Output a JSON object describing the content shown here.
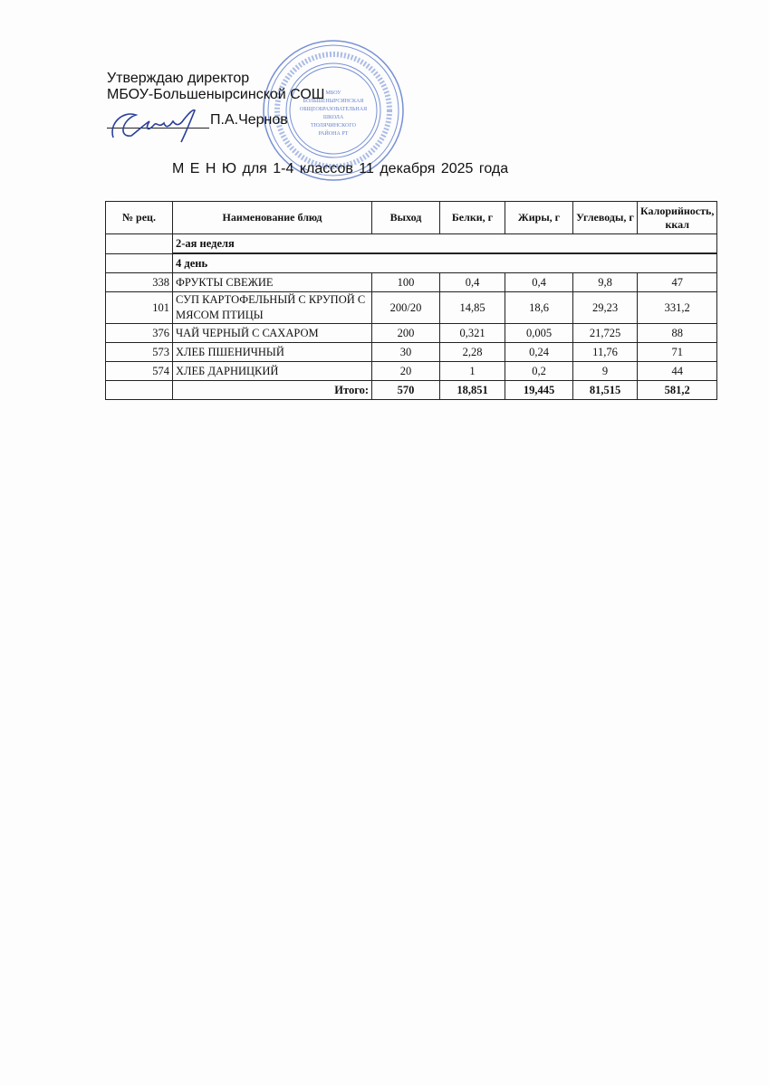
{
  "header": {
    "approve": "Утверждаю директор",
    "school": "МБОУ-Большенырсинской СОШ",
    "director": "П.А.Чернов",
    "title": "М Е Н Ю  для 1-4 классов   11  декабря   2025 года"
  },
  "stamp": {
    "text": "МБОУ БОЛЬШЕНЫРСИНСКАЯ ОБЩЕОБРАЗОВАТЕЛЬНАЯ ШКОЛА ТЮЛЯЧИНСКОГО РАЙОНА РТ",
    "color": "#3a5fc0"
  },
  "table": {
    "columns": [
      "№ рец.",
      "Наименование блюд",
      "Выход",
      "Белки, г",
      "Жиры, г",
      "Углеводы, г",
      "Калорийность, ккал"
    ],
    "week": "2-ая неделя",
    "day": "4 день",
    "rows": [
      {
        "rec": "338",
        "name": "ФРУКТЫ СВЕЖИЕ",
        "out": "100",
        "prot": "0,4",
        "fat": "0,4",
        "carb": "9,8",
        "kcal": "47"
      },
      {
        "rec": "101",
        "name": "СУП КАРТОФЕЛЬНЫЙ С КРУПОЙ С МЯСОМ ПТИЦЫ",
        "out": "200/20",
        "prot": "14,85",
        "fat": "18,6",
        "carb": "29,23",
        "kcal": "331,2"
      },
      {
        "rec": "376",
        "name": "ЧАЙ ЧЕРНЫЙ С САХАРОМ",
        "out": "200",
        "prot": "0,321",
        "fat": "0,005",
        "carb": "21,725",
        "kcal": "88"
      },
      {
        "rec": "573",
        "name": "ХЛЕБ ПШЕНИЧНЫЙ",
        "out": "30",
        "prot": "2,28",
        "fat": "0,24",
        "carb": "11,76",
        "kcal": "71"
      },
      {
        "rec": "574",
        "name": "ХЛЕБ ДАРНИЦКИЙ",
        "out": "20",
        "prot": "1",
        "fat": "0,2",
        "carb": "9",
        "kcal": "44"
      }
    ],
    "total": {
      "label": "Итого:",
      "out": "570",
      "prot": "18,851",
      "fat": "19,445",
      "carb": "81,515",
      "kcal": "581,2"
    }
  }
}
